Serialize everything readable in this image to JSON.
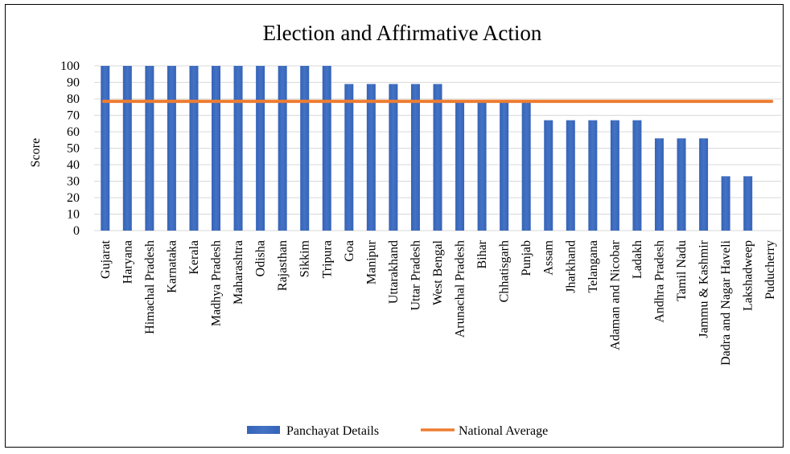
{
  "chart_data": {
    "type": "bar",
    "title": "Election and Affirmative Action",
    "xlabel": "",
    "ylabel": "Score",
    "ylim": [
      0,
      100
    ],
    "yticks": [
      0,
      10,
      20,
      30,
      40,
      50,
      60,
      70,
      80,
      90,
      100
    ],
    "grid": true,
    "legend_position": "bottom",
    "categories": [
      "Gujarat",
      "Haryana",
      "Himachal Pradesh",
      "Karnataka",
      "Kerala",
      "Madhya Pradesh",
      "Maharashtra",
      "Odisha",
      "Rajasthan",
      "Sikkim",
      "Tripura",
      "Goa",
      "Manipur",
      "Uttarakhand",
      "Uttar Pradesh",
      "West Bengal",
      "Arunachal Pradesh",
      "Bihar",
      "Chhatisgarh",
      "Punjab",
      "Assam",
      "Jharkhand",
      "Telangana",
      "Adaman and Nicobar",
      "Ladakh",
      "Andhra Pradesh",
      "Tamil Nadu",
      "Jammu & Kashmir",
      "Dadra and Nagar Haveli",
      "Lakshadweep",
      "Puducherry"
    ],
    "series": [
      {
        "name": "Panchayat Details",
        "kind": "bar",
        "color": "#4472C4",
        "values": [
          100,
          100,
          100,
          100,
          100,
          100,
          100,
          100,
          100,
          100,
          100,
          89,
          89,
          89,
          89,
          89,
          78,
          78,
          78,
          78,
          67,
          67,
          67,
          67,
          67,
          56,
          56,
          56,
          33,
          33,
          0
        ]
      },
      {
        "name": "National Average",
        "kind": "line",
        "color": "#ED7D31",
        "values": [
          78.5,
          78.5,
          78.5,
          78.5,
          78.5,
          78.5,
          78.5,
          78.5,
          78.5,
          78.5,
          78.5,
          78.5,
          78.5,
          78.5,
          78.5,
          78.5,
          78.5,
          78.5,
          78.5,
          78.5,
          78.5,
          78.5,
          78.5,
          78.5,
          78.5,
          78.5,
          78.5,
          78.5,
          78.5,
          78.5,
          78.5
        ]
      }
    ]
  }
}
